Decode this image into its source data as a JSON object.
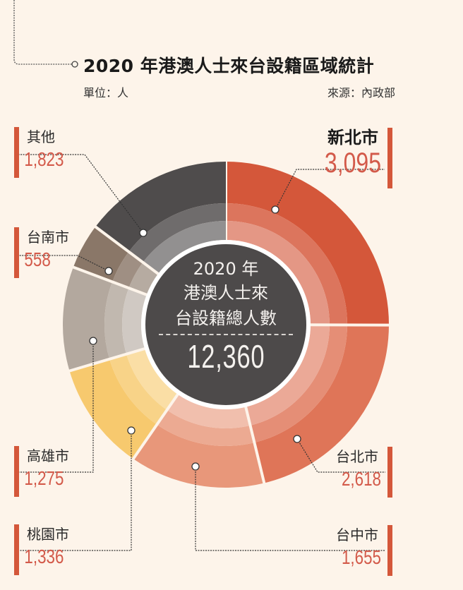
{
  "header": {
    "title": "2020 年港澳人士來台設籍區域統計",
    "unit": "單位：人",
    "source": "來源：內政部"
  },
  "center": {
    "line1": "2020 年",
    "line2": "港澳人士來",
    "line3": "台設籍總人數",
    "total": "12,360"
  },
  "labels": {
    "xinbei": {
      "name": "新北市",
      "value": "3,095"
    },
    "taipei": {
      "name": "台北市",
      "value": "2,618"
    },
    "taichung": {
      "name": "台中市",
      "value": "1,655"
    },
    "taoyuan": {
      "name": "桃園市",
      "value": "1,336"
    },
    "kaohsiung": {
      "name": "高雄市",
      "value": "1,275"
    },
    "tainan": {
      "name": "台南市",
      "value": "558"
    },
    "other": {
      "name": "其他",
      "value": "1,823"
    }
  },
  "colors": {
    "background": "#fdf4ea",
    "accent_bar": "#d4573a",
    "value_text": "#d35a4a",
    "center_circle": "#4d4a4a"
  },
  "chart_data": {
    "type": "pie",
    "variant": "donut",
    "title": "2020 年港澳人士來台設籍區域統計",
    "unit": "人",
    "source": "內政部",
    "center_label": "2020 年港澳人士來台設籍總人數",
    "total": 12360,
    "categories": [
      "新北市",
      "台北市",
      "台中市",
      "桃園市",
      "高雄市",
      "台南市",
      "其他"
    ],
    "values": [
      3095,
      2618,
      1655,
      1336,
      1275,
      558,
      1823
    ],
    "colors": [
      "#d4573a",
      "#df7558",
      "#e8977a",
      "#f7c96e",
      "#b3a89e",
      "#8a7768",
      "#4f4c4c"
    ],
    "start_angle_deg": 0,
    "direction": "clockwise",
    "legend": "callout labels with leader lines"
  }
}
